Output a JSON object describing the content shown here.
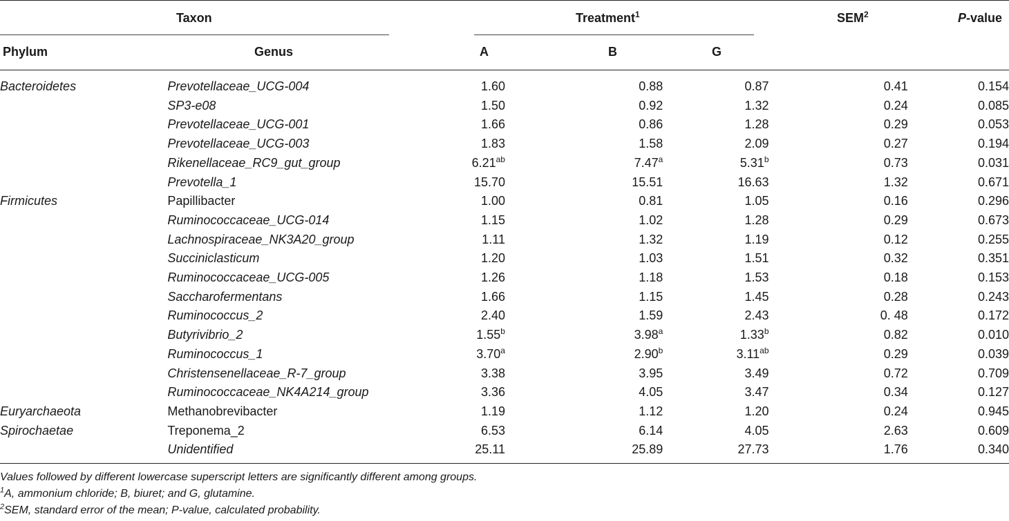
{
  "header": {
    "taxon": "Taxon",
    "treatment": "Treatment",
    "treatment_sup": "1",
    "sem": "SEM",
    "sem_sup": "2",
    "pvalue_p": "P",
    "pvalue_rest": "-value",
    "phylum": "Phylum",
    "genus": "Genus",
    "a": "A",
    "b": "B",
    "g": "G"
  },
  "rows": [
    {
      "phylum": "Bacteroidetes",
      "genus": "Prevotellaceae_UCG-004",
      "italic": true,
      "a": "1.60",
      "a_sup": "",
      "b": "0.88",
      "b_sup": "",
      "g": "0.87",
      "g_sup": "",
      "sem": "0.41",
      "p": "0.154"
    },
    {
      "phylum": "",
      "genus": "SP3-e08",
      "italic": true,
      "a": "1.50",
      "a_sup": "",
      "b": "0.92",
      "b_sup": "",
      "g": "1.32",
      "g_sup": "",
      "sem": "0.24",
      "p": "0.085"
    },
    {
      "phylum": "",
      "genus": "Prevotellaceae_UCG-001",
      "italic": true,
      "a": "1.66",
      "a_sup": "",
      "b": "0.86",
      "b_sup": "",
      "g": "1.28",
      "g_sup": "",
      "sem": "0.29",
      "p": "0.053"
    },
    {
      "phylum": "",
      "genus": "Prevotellaceae_UCG-003",
      "italic": true,
      "a": "1.83",
      "a_sup": "",
      "b": "1.58",
      "b_sup": "",
      "g": "2.09",
      "g_sup": "",
      "sem": "0.27",
      "p": "0.194"
    },
    {
      "phylum": "",
      "genus": "Rikenellaceae_RC9_gut_group",
      "italic": true,
      "a": "6.21",
      "a_sup": "ab",
      "b": "7.47",
      "b_sup": "a",
      "g": "5.31",
      "g_sup": "b",
      "sem": "0.73",
      "p": "0.031"
    },
    {
      "phylum": "",
      "genus": "Prevotella_1",
      "italic": true,
      "a": "15.70",
      "a_sup": "",
      "b": "15.51",
      "b_sup": "",
      "g": "16.63",
      "g_sup": "",
      "sem": "1.32",
      "p": "0.671"
    },
    {
      "phylum": "Firmicutes",
      "genus": "Papillibacter",
      "italic": false,
      "a": "1.00",
      "a_sup": "",
      "b": "0.81",
      "b_sup": "",
      "g": "1.05",
      "g_sup": "",
      "sem": "0.16",
      "p": "0.296"
    },
    {
      "phylum": "",
      "genus": "Ruminococcaceae_UCG-014",
      "italic": true,
      "a": "1.15",
      "a_sup": "",
      "b": "1.02",
      "b_sup": "",
      "g": "1.28",
      "g_sup": "",
      "sem": "0.29",
      "p": "0.673"
    },
    {
      "phylum": "",
      "genus": "Lachnospiraceae_NK3A20_group",
      "italic": true,
      "a": "1.11",
      "a_sup": "",
      "b": "1.32",
      "b_sup": "",
      "g": "1.19",
      "g_sup": "",
      "sem": "0.12",
      "p": "0.255"
    },
    {
      "phylum": "",
      "genus": "Succiniclasticum",
      "italic": true,
      "a": "1.20",
      "a_sup": "",
      "b": "1.03",
      "b_sup": "",
      "g": "1.51",
      "g_sup": "",
      "sem": "0.32",
      "p": "0.351"
    },
    {
      "phylum": "",
      "genus": "Ruminococcaceae_UCG-005",
      "italic": true,
      "a": "1.26",
      "a_sup": "",
      "b": "1.18",
      "b_sup": "",
      "g": "1.53",
      "g_sup": "",
      "sem": "0.18",
      "p": "0.153"
    },
    {
      "phylum": "",
      "genus": "Saccharofermentans",
      "italic": true,
      "a": "1.66",
      "a_sup": "",
      "b": "1.15",
      "b_sup": "",
      "g": "1.45",
      "g_sup": "",
      "sem": "0.28",
      "p": "0.243"
    },
    {
      "phylum": "",
      "genus": "Ruminococcus_2",
      "italic": true,
      "a": "2.40",
      "a_sup": "",
      "b": "1.59",
      "b_sup": "",
      "g": "2.43",
      "g_sup": "",
      "sem": "0. 48",
      "p": "0.172"
    },
    {
      "phylum": "",
      "genus": "Butyrivibrio_2",
      "italic": true,
      "a": "1.55",
      "a_sup": "b",
      "b": "3.98",
      "b_sup": "a",
      "g": "1.33",
      "g_sup": "b",
      "sem": "0.82",
      "p": "0.010"
    },
    {
      "phylum": "",
      "genus": "Ruminococcus_1",
      "italic": true,
      "a": "3.70",
      "a_sup": "a",
      "b": "2.90",
      "b_sup": "b",
      "g": "3.11",
      "g_sup": "ab",
      "sem": "0.29",
      "p": "0.039"
    },
    {
      "phylum": "",
      "genus": "Christensenellaceae_R-7_group",
      "italic": true,
      "a": "3.38",
      "a_sup": "",
      "b": "3.95",
      "b_sup": "",
      "g": "3.49",
      "g_sup": "",
      "sem": "0.72",
      "p": "0.709"
    },
    {
      "phylum": "",
      "genus": "Ruminococcaceae_NK4A214_group",
      "italic": true,
      "a": "3.36",
      "a_sup": "",
      "b": "4.05",
      "b_sup": "",
      "g": "3.47",
      "g_sup": "",
      "sem": "0.34",
      "p": "0.127"
    },
    {
      "phylum": "Euryarchaeota",
      "genus": "Methanobrevibacter",
      "italic": false,
      "a": "1.19",
      "a_sup": "",
      "b": "1.12",
      "b_sup": "",
      "g": "1.20",
      "g_sup": "",
      "sem": "0.24",
      "p": "0.945"
    },
    {
      "phylum": "Spirochaetae",
      "genus": "Treponema_2",
      "italic": false,
      "a": "6.53",
      "a_sup": "",
      "b": "6.14",
      "b_sup": "",
      "g": "4.05",
      "g_sup": "",
      "sem": "2.63",
      "p": "0.609"
    },
    {
      "phylum": "",
      "genus": "Unidentified",
      "italic": true,
      "a": "25.11",
      "a_sup": "",
      "b": "25.89",
      "b_sup": "",
      "g": "27.73",
      "g_sup": "",
      "sem": "1.76",
      "p": "0.340"
    }
  ],
  "footnotes": {
    "note0": "Values followed by different lowercase superscript letters are significantly different among groups.",
    "note1_sup": "1",
    "note1": "A, ammonium chloride; B, biuret; and G, glutamine.",
    "note2_sup": "2",
    "note2": "SEM, standard error of the mean; P-value, calculated probability."
  }
}
